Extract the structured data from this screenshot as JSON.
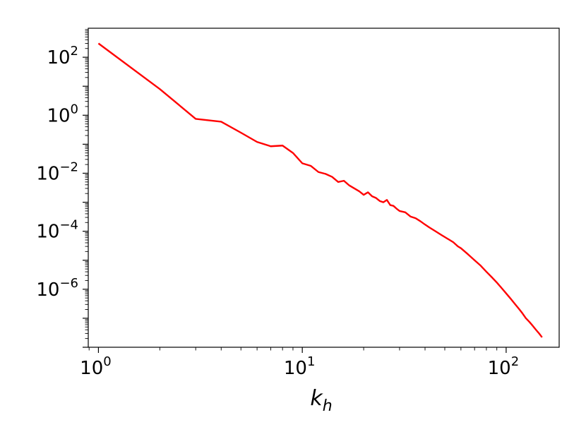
{
  "chart_data": {
    "type": "line",
    "xscale": "log",
    "yscale": "log",
    "xlim": [
      0.8913,
      182
    ],
    "ylim": [
      1e-08,
      1000
    ],
    "grid": false,
    "xlabel": {
      "base": "k",
      "sub": "h"
    },
    "ylabel": "",
    "title": "",
    "xticks": [
      {
        "value": 1,
        "base": "10",
        "exp": "0"
      },
      {
        "value": 10,
        "base": "10",
        "exp": "1"
      },
      {
        "value": 100,
        "base": "10",
        "exp": "2"
      }
    ],
    "yticks": [
      {
        "value": 100,
        "base": "10",
        "exp": "2"
      },
      {
        "value": 1,
        "base": "10",
        "exp": "0"
      },
      {
        "value": 0.01,
        "base": "10",
        "exp": "−2"
      },
      {
        "value": 0.0001,
        "base": "10",
        "exp": "−4"
      },
      {
        "value": 1e-06,
        "base": "10",
        "exp": "−6"
      }
    ],
    "series": [
      {
        "color": "#ff0000",
        "x": [
          1,
          2,
          3,
          4,
          5,
          6,
          7,
          8,
          9,
          10,
          11,
          12,
          13,
          14,
          15,
          16,
          17,
          18,
          19,
          20,
          21,
          22,
          23,
          24,
          25,
          26,
          27,
          28,
          29,
          30,
          32,
          34,
          36,
          38,
          40,
          42,
          45,
          48,
          51,
          55,
          58,
          60,
          65,
          70,
          75,
          80,
          85,
          90,
          95,
          100,
          105,
          110,
          115,
          120,
          125,
          130,
          135,
          140,
          145,
          150
        ],
        "y": [
          300,
          8,
          0.75,
          0.6,
          0.25,
          0.12,
          0.085,
          0.09,
          0.05,
          0.022,
          0.018,
          0.011,
          0.0095,
          0.0075,
          0.005,
          0.0055,
          0.0038,
          0.003,
          0.0024,
          0.0018,
          0.0022,
          0.0016,
          0.0014,
          0.0011,
          0.001,
          0.0012,
          0.0008,
          0.00075,
          0.0006,
          0.0005,
          0.00045,
          0.00032,
          0.00028,
          0.00022,
          0.00017,
          0.000135,
          0.0001,
          7.5e-05,
          5.8e-05,
          4.2e-05,
          3e-05,
          2.6e-05,
          1.6e-05,
          1e-05,
          6.5e-06,
          4e-06,
          2.6e-06,
          1.7e-06,
          1.1e-06,
          7.2e-07,
          4.8e-07,
          3.2e-07,
          2.2e-07,
          1.5e-07,
          1e-07,
          7.5e-08,
          5.5e-08,
          4e-08,
          3e-08,
          2.2e-08
        ]
      }
    ]
  }
}
